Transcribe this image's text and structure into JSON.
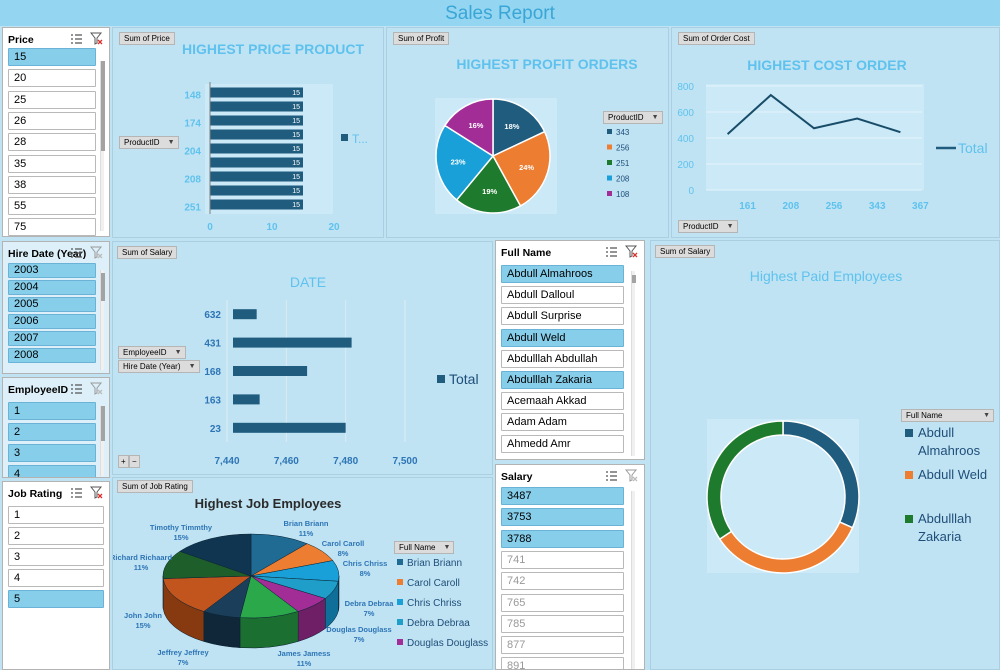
{
  "report_title": "Sales  Report",
  "colors": {
    "navy": "#1f5c7e",
    "orange": "#ed7d31",
    "green": "#1e7a2c",
    "cyan": "#1aa0d8",
    "purple": "#a22d97",
    "light": "#5fc2ee"
  },
  "slicers": {
    "price": {
      "title": "Price",
      "items": [
        "15",
        "20",
        "25",
        "26",
        "28",
        "35",
        "38",
        "55",
        "75"
      ]
    },
    "hire_year": {
      "title": "Hire Date (Year)",
      "items": [
        "2003",
        "2004",
        "2005",
        "2006",
        "2007",
        "2008"
      ]
    },
    "employee_id": {
      "title": "EmployeeID",
      "items": [
        "1",
        "2",
        "3",
        "4"
      ]
    },
    "job_rating": {
      "title": "Job Rating",
      "items": [
        "1",
        "2",
        "3",
        "4",
        "5"
      ]
    },
    "full_name": {
      "title": "Full Name",
      "items": [
        "Abdull Almahroos",
        "Abdull Dalloul",
        "Abdull Surprise",
        "Abdull Weld",
        "Abdulllah Abdullah",
        "Abdulllah Zakaria",
        "Acemaah Akkad",
        "Adam Adam",
        "Ahmedd Amr"
      ]
    },
    "salary": {
      "title": "Salary",
      "items": [
        "3487",
        "3753",
        "3788",
        "741",
        "742",
        "765",
        "785",
        "877",
        "891"
      ]
    }
  },
  "price_chart": {
    "field_btn": "Sum of Price",
    "axis_btn": "ProductID",
    "legend": "T...",
    "chart_data": {
      "type": "bar",
      "title": "HIGHEST PRICE PRODUCT",
      "categories": [
        "148",
        "",
        "174",
        "",
        "204",
        "",
        "208",
        "",
        "251"
      ],
      "values": [
        15,
        15,
        15,
        15,
        15,
        15,
        15,
        15,
        15
      ],
      "xlim": [
        0,
        20
      ],
      "xticks": [
        "0",
        "10",
        "20"
      ]
    }
  },
  "profit_chart": {
    "field_btn": "Sum of Profit",
    "legend_btn": "ProductID",
    "chart_data": {
      "type": "pie",
      "title": "HIGHEST PROFIT ORDERS",
      "categories": [
        "343",
        "256",
        "251",
        "208",
        "108"
      ],
      "values": [
        18,
        24,
        19,
        23,
        16
      ],
      "labels": [
        "18%",
        "24%",
        "19%",
        "23%",
        "16%"
      ]
    }
  },
  "cost_chart": {
    "field_btn": "Sum of Order Cost",
    "axis_btn": "ProductID",
    "legend": "Total",
    "chart_data": {
      "type": "line",
      "title": "HIGHEST COST ORDER",
      "categories": [
        "161",
        "208",
        "256",
        "343",
        "367"
      ],
      "values": [
        430,
        730,
        475,
        550,
        445
      ],
      "ylim": [
        0,
        800
      ],
      "yticks": [
        "0",
        "200",
        "400",
        "600",
        "800"
      ]
    }
  },
  "salary_date_chart": {
    "field_btn": "Sum of Salary",
    "axis_btn1": "EmployeeID",
    "axis_btn2": "Hire Date (Year)",
    "legend": "Total",
    "expand": "+",
    "collapse": "−",
    "chart_data": {
      "type": "bar",
      "title": "DATE",
      "categories": [
        "632",
        "431",
        "168",
        "163",
        "23"
      ],
      "values": [
        7450,
        7482,
        7467,
        7451,
        7480
      ],
      "xlim": [
        7440,
        7500
      ],
      "xticks": [
        "7,440",
        "7,460",
        "7,480",
        "7,500"
      ]
    }
  },
  "job_chart": {
    "field_btn": "Sum of Job Rating",
    "legend_btn": "Full Name",
    "legend": [
      "Brian Briann",
      "Carol Caroll",
      "Chris Chriss",
      "Debra Debraa",
      "Douglas Douglass"
    ],
    "chart_data": {
      "type": "pie",
      "title": "Highest Job Employees",
      "categories": [
        "Brian Briann",
        "Carol Caroll",
        "Chris Chriss",
        "Debra Debraa",
        "Douglas Douglass",
        "James Jamess",
        "Jeffrey Jeffrey",
        "John John",
        "Richard Richaard",
        "Timothy Timmthy"
      ],
      "values": [
        11,
        8,
        8,
        7,
        7,
        11,
        7,
        15,
        11,
        15
      ],
      "labels": [
        "Brian Briann\n11%",
        "Carol Caroll\n8%",
        "Chris Chriss\n8%",
        "Debra Debraa\n7%",
        "Douglas Douglass\n7%",
        "James Jamess\n11%",
        "Jeffrey Jeffrey\n7%",
        "John John\n15%",
        "Richard Richaard\n11%",
        "Timothy Timmthy\n15%"
      ]
    }
  },
  "paid_chart": {
    "field_btn": "Sum of Salary",
    "legend_btn": "Full Name",
    "chart_data": {
      "type": "pie",
      "title": "Highest Paid Employees",
      "categories": [
        "Abdull Almahroos",
        "Abdull Weld",
        "Abdulllah Zakaria"
      ],
      "values": [
        3487,
        3753,
        3788
      ]
    }
  }
}
